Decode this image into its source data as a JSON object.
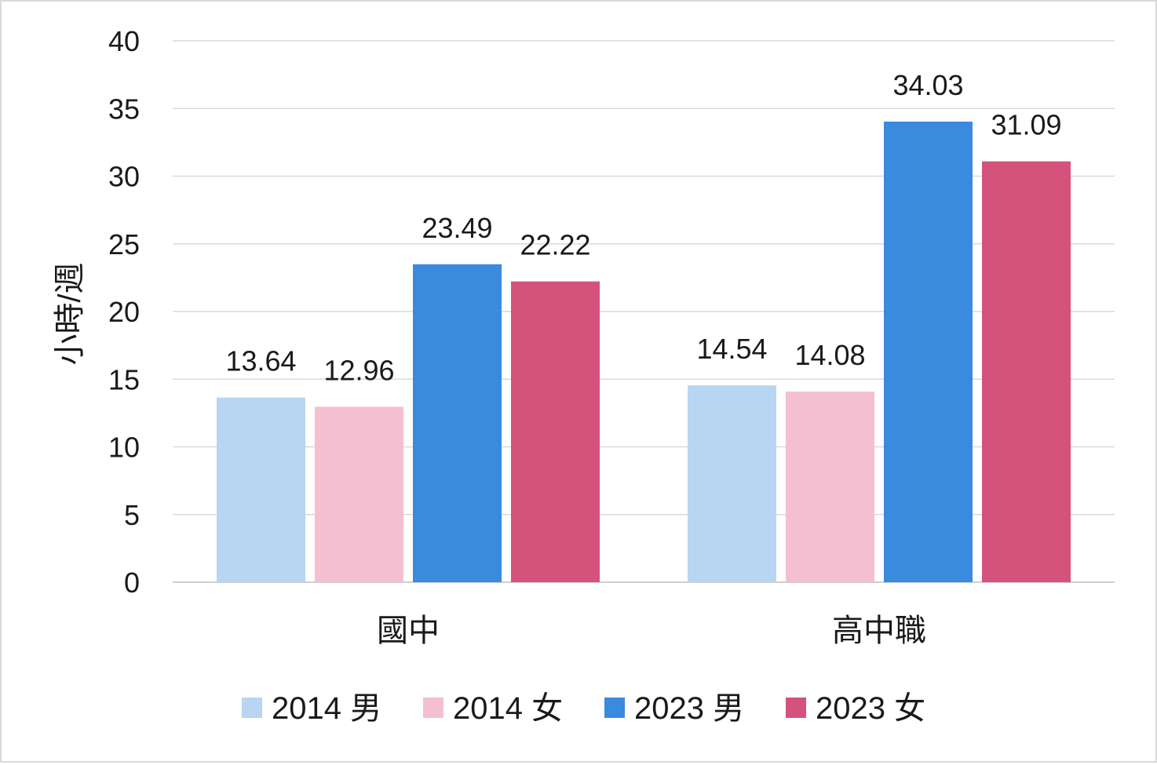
{
  "chart_data": {
    "type": "bar",
    "title": "",
    "xlabel": "",
    "ylabel": "小時/週",
    "ylim": [
      0,
      40
    ],
    "yticks": [
      0,
      5,
      10,
      15,
      20,
      25,
      30,
      35,
      40
    ],
    "grid": true,
    "legend_position": "bottom",
    "categories": [
      "國中",
      "高中職"
    ],
    "series": [
      {
        "name": "2014 男",
        "color": "#b8d5f2",
        "values": [
          13.64,
          14.54
        ],
        "labels": [
          "13.64",
          "14.54"
        ]
      },
      {
        "name": "2014 女",
        "color": "#f4c0d1",
        "values": [
          12.96,
          14.08
        ],
        "labels": [
          "12.96",
          "14.08"
        ]
      },
      {
        "name": "2023 男",
        "color": "#3a8ade",
        "values": [
          23.49,
          34.03
        ],
        "labels": [
          "23.49",
          "34.03"
        ]
      },
      {
        "name": "2023 女",
        "color": "#d4527c",
        "values": [
          22.22,
          31.09
        ],
        "labels": [
          "22.22",
          "31.09"
        ]
      }
    ]
  }
}
